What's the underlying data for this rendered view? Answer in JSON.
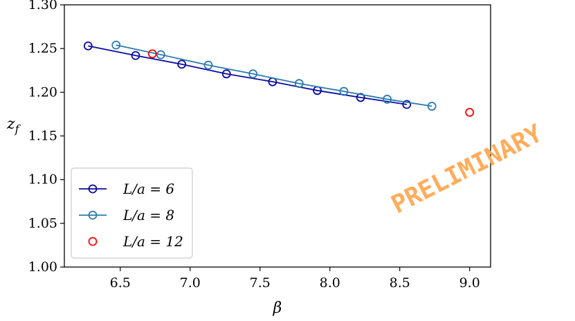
{
  "chart_data": {
    "type": "line",
    "xlabel": "β",
    "ylabel": "z_f",
    "xlim": [
      6.1,
      9.15
    ],
    "ylim": [
      1.0,
      1.3
    ],
    "xticks": [
      6.5,
      7.0,
      7.5,
      8.0,
      8.5,
      9.0
    ],
    "xtick_labels": [
      "6.5",
      "7.0",
      "7.5",
      "8.0",
      "8.5",
      "9.0"
    ],
    "yticks": [
      1.0,
      1.05,
      1.1,
      1.15,
      1.2,
      1.25,
      1.3
    ],
    "ytick_labels": [
      "1.00",
      "1.05",
      "1.10",
      "1.15",
      "1.20",
      "1.25",
      "1.30"
    ],
    "grid": false,
    "legend_position": "lower-left",
    "watermark": "PRELIMINARY",
    "series": [
      {
        "name": "L/a = 6",
        "color": "#0a0aa0",
        "line": true,
        "marker": "open-circle",
        "x": [
          6.27,
          6.61,
          6.94,
          7.26,
          7.59,
          7.91,
          8.22,
          8.55
        ],
        "y": [
          1.253,
          1.242,
          1.232,
          1.221,
          1.212,
          1.202,
          1.194,
          1.186
        ]
      },
      {
        "name": "L/a = 8",
        "color": "#2a7bb0",
        "line": true,
        "marker": "open-circle",
        "x": [
          6.47,
          6.79,
          7.13,
          7.45,
          7.78,
          8.1,
          8.41,
          8.73
        ],
        "y": [
          1.254,
          1.243,
          1.231,
          1.221,
          1.21,
          1.201,
          1.192,
          1.184
        ]
      },
      {
        "name": "L/a = 12",
        "color": "#ff0000",
        "line": false,
        "marker": "open-circle",
        "x": [
          6.73,
          9.0
        ],
        "y": [
          1.244,
          1.177
        ]
      }
    ]
  }
}
